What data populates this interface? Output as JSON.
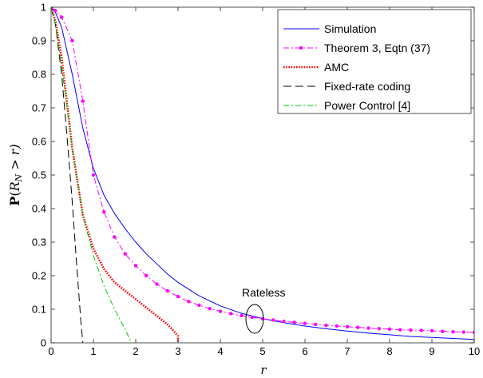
{
  "chart_data": {
    "type": "line",
    "xlabel": "r",
    "ylabel_main": "P",
    "ylabel_paren_open": "(",
    "ylabel_var": "R",
    "ylabel_sub": "N",
    "ylabel_rest": " > r)",
    "xlim": [
      0,
      10
    ],
    "ylim": [
      0,
      1
    ],
    "xticks": [
      "0",
      "1",
      "2",
      "3",
      "4",
      "5",
      "6",
      "7",
      "8",
      "9",
      "10"
    ],
    "yticks": [
      "0",
      "0.1",
      "0.2",
      "0.3",
      "0.4",
      "0.5",
      "0.6",
      "0.7",
      "0.8",
      "0.9",
      "1"
    ],
    "grid": false,
    "legend_position": "top-right",
    "annotation": "Rateless",
    "series": [
      {
        "name": "Simulation",
        "color": "#0000ff",
        "style": "solid",
        "x": [
          0,
          0.1,
          0.25,
          0.5,
          0.75,
          1,
          1.25,
          1.5,
          1.75,
          2,
          2.25,
          2.5,
          2.75,
          3,
          3.5,
          4,
          4.5,
          5,
          5.5,
          6,
          6.5,
          7,
          7.5,
          8,
          8.5,
          9,
          9.5,
          10
        ],
        "y": [
          1.0,
          0.985,
          0.94,
          0.8,
          0.64,
          0.52,
          0.44,
          0.385,
          0.34,
          0.3,
          0.265,
          0.235,
          0.205,
          0.18,
          0.14,
          0.11,
          0.088,
          0.072,
          0.06,
          0.05,
          0.042,
          0.035,
          0.029,
          0.024,
          0.019,
          0.016,
          0.013,
          0.01
        ]
      },
      {
        "name": "Theorem 3, Eqtn (37)",
        "color": "#ff00ff",
        "style": "dashdot-marker",
        "x": [
          0,
          0.1,
          0.25,
          0.5,
          0.75,
          1,
          1.25,
          1.5,
          1.75,
          2,
          2.25,
          2.5,
          2.75,
          3,
          3.25,
          3.5,
          3.75,
          4,
          4.25,
          4.5,
          4.75,
          5,
          5.25,
          5.5,
          5.75,
          6,
          6.25,
          6.5,
          6.75,
          7,
          7.25,
          7.5,
          7.75,
          8,
          8.25,
          8.5,
          8.75,
          9,
          9.25,
          9.5,
          9.75,
          10
        ],
        "y": [
          1.0,
          0.99,
          0.97,
          0.9,
          0.72,
          0.5,
          0.39,
          0.315,
          0.265,
          0.23,
          0.2,
          0.175,
          0.155,
          0.138,
          0.123,
          0.112,
          0.102,
          0.094,
          0.087,
          0.081,
          0.076,
          0.072,
          0.068,
          0.064,
          0.061,
          0.058,
          0.055,
          0.052,
          0.05,
          0.048,
          0.046,
          0.044,
          0.042,
          0.041,
          0.039,
          0.038,
          0.037,
          0.036,
          0.034,
          0.033,
          0.032,
          0.031
        ]
      },
      {
        "name": "AMC",
        "color": "#ff0000",
        "style": "dotted",
        "x": [
          0,
          0.1,
          0.25,
          0.5,
          0.75,
          1,
          1.25,
          1.5,
          1.75,
          2,
          2.25,
          2.5,
          2.75,
          2.9,
          3,
          3.0
        ],
        "y": [
          1.0,
          0.96,
          0.85,
          0.58,
          0.38,
          0.28,
          0.22,
          0.18,
          0.155,
          0.13,
          0.105,
          0.08,
          0.055,
          0.035,
          0.02,
          0.0
        ]
      },
      {
        "name": "Fixed-rate coding",
        "color": "#000000",
        "style": "dashed",
        "x": [
          0,
          0.1,
          0.25,
          0.4,
          0.5,
          0.6,
          0.7,
          0.75
        ],
        "y": [
          1.0,
          0.95,
          0.8,
          0.58,
          0.42,
          0.24,
          0.07,
          0.0
        ]
      },
      {
        "name": "Power Control [4]",
        "color": "#00cc00",
        "style": "dashdot",
        "x": [
          0,
          0.1,
          0.25,
          0.5,
          0.75,
          1,
          1.25,
          1.5,
          1.75,
          1.9
        ],
        "y": [
          1.0,
          0.95,
          0.82,
          0.58,
          0.38,
          0.26,
          0.17,
          0.1,
          0.04,
          0.0
        ]
      }
    ]
  }
}
